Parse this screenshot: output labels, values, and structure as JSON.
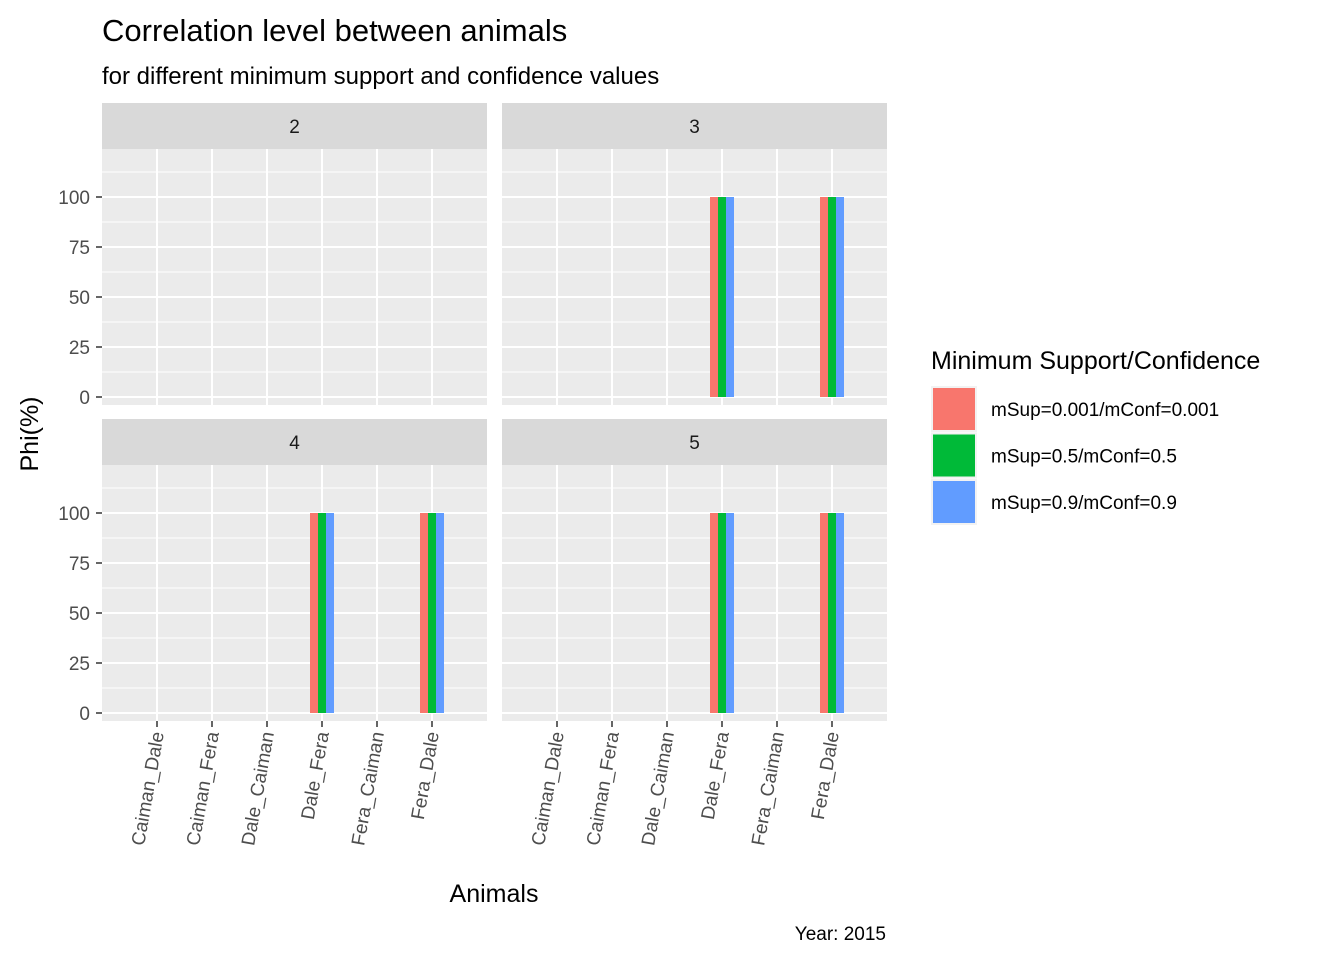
{
  "chart_data": {
    "type": "bar",
    "title": "Correlation level between animals",
    "subtitle": "for different minimum support and confidence values",
    "xlabel": "Animals",
    "ylabel": "Phi(%)",
    "caption": "Year: 2015",
    "ylim": [
      -4,
      124
    ],
    "y_ticks": [
      0,
      25,
      50,
      75,
      100
    ],
    "grid": true,
    "legend_position": "right",
    "legend_title": "Minimum Support/Confidence",
    "categories": [
      "Caiman_Dale",
      "Caiman_Fera",
      "Dale_Caiman",
      "Dale_Fera",
      "Fera_Caiman",
      "Fera_Dale"
    ],
    "series": [
      {
        "name": "mSup=0.001/mConf=0.001",
        "color": "#F8766D"
      },
      {
        "name": "mSup=0.5/mConf=0.5",
        "color": "#00BA38"
      },
      {
        "name": "mSup=0.9/mConf=0.9",
        "color": "#619CFF"
      }
    ],
    "facets": [
      {
        "label": "2",
        "values": [
          [
            0,
            0,
            0,
            0,
            0,
            0
          ],
          [
            0,
            0,
            0,
            0,
            0,
            0
          ],
          [
            0,
            0,
            0,
            0,
            0,
            0
          ]
        ]
      },
      {
        "label": "3",
        "values": [
          [
            0,
            0,
            0,
            100,
            0,
            100
          ],
          [
            0,
            0,
            0,
            100,
            0,
            100
          ],
          [
            0,
            0,
            0,
            100,
            0,
            100
          ]
        ]
      },
      {
        "label": "4",
        "values": [
          [
            0,
            0,
            0,
            100,
            0,
            100
          ],
          [
            0,
            0,
            0,
            100,
            0,
            100
          ],
          [
            0,
            0,
            0,
            100,
            0,
            100
          ]
        ]
      },
      {
        "label": "5",
        "values": [
          [
            0,
            0,
            0,
            100,
            0,
            100
          ],
          [
            0,
            0,
            0,
            100,
            0,
            100
          ],
          [
            0,
            0,
            0,
            100,
            0,
            100
          ]
        ]
      }
    ]
  }
}
